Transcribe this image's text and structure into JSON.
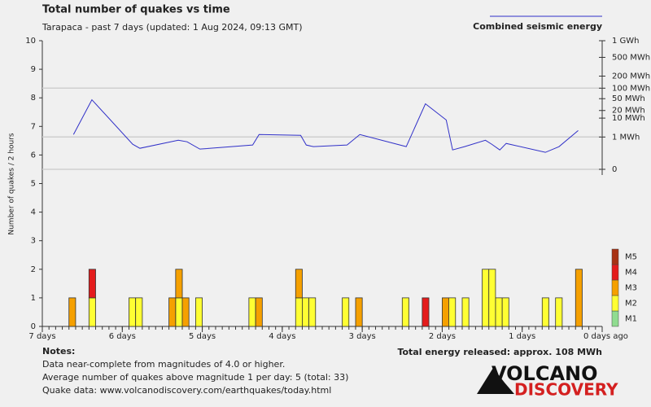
{
  "chart_data": {
    "type": "stacked-bar-line",
    "title": "Total number of quakes vs time",
    "subtitle": "Tarapaca - past 7 days (updated: 1 Aug 2024, 09:13 GMT)",
    "ylabel": "Number of quakes / 2 hours",
    "xlim": [
      7,
      0
    ],
    "xticks": [
      {
        "value": 7,
        "label": "7 days"
      },
      {
        "value": 6,
        "label": "6 days"
      },
      {
        "value": 5,
        "label": "5 days"
      },
      {
        "value": 4,
        "label": "4 days"
      },
      {
        "value": 3,
        "label": "3 days"
      },
      {
        "value": 2,
        "label": "2 days"
      },
      {
        "value": 1,
        "label": "1 days"
      },
      {
        "value": 0,
        "label": "0 days ago"
      }
    ],
    "ylim": [
      0,
      10
    ],
    "yticks": [
      0,
      1,
      2,
      3,
      4,
      5,
      6,
      7,
      8,
      9,
      10
    ],
    "y2lim": [
      0,
      1000
    ],
    "y2scale": "fifth-root",
    "y2ticks": [
      {
        "value": 1000,
        "label": "1 GWh"
      },
      {
        "value": 500,
        "label": "500 MWh"
      },
      {
        "value": 200,
        "label": "200 MWh"
      },
      {
        "value": 100,
        "label": "100 MWh",
        "grid": true
      },
      {
        "value": 50,
        "label": "50 MWh"
      },
      {
        "value": 20,
        "label": "20 MWh"
      },
      {
        "value": 10,
        "label": "10 MWh"
      },
      {
        "value": 1,
        "label": "1 MWh",
        "grid": true
      },
      {
        "value": 0,
        "label": "0",
        "grid": true
      }
    ],
    "x": [
      6.667,
      6.417,
      5.917,
      5.833,
      5.417,
      5.333,
      5.25,
      5.083,
      4.417,
      4.333,
      3.833,
      3.75,
      3.667,
      3.25,
      3.083,
      2.5,
      2.25,
      2.0,
      1.917,
      1.75,
      1.5,
      1.417,
      1.333,
      1.25,
      0.75,
      0.583,
      0.333
    ],
    "series": [
      {
        "name": "M1",
        "color": "#90dc90",
        "values": [
          0,
          0,
          0,
          0,
          0,
          0,
          0,
          0,
          0,
          0,
          0,
          0,
          0,
          0,
          0,
          0,
          0,
          0,
          0,
          0,
          0,
          0,
          0,
          0,
          0,
          0,
          0
        ]
      },
      {
        "name": "M2",
        "color": "#ffff33",
        "values": [
          0,
          1,
          1,
          1,
          0,
          1,
          0,
          1,
          1,
          0,
          1,
          1,
          1,
          1,
          0,
          1,
          0,
          0,
          1,
          1,
          2,
          2,
          1,
          1,
          1,
          1,
          0
        ]
      },
      {
        "name": "M3",
        "color": "#f5a000",
        "values": [
          1,
          0,
          0,
          0,
          1,
          1,
          1,
          0,
          0,
          1,
          1,
          0,
          0,
          0,
          1,
          0,
          0,
          1,
          0,
          0,
          0,
          0,
          0,
          0,
          0,
          0,
          2
        ]
      },
      {
        "name": "M4",
        "color": "#e41c1c",
        "values": [
          0,
          1,
          0,
          0,
          0,
          0,
          0,
          0,
          0,
          0,
          0,
          0,
          0,
          0,
          0,
          0,
          1,
          0,
          0,
          0,
          0,
          0,
          0,
          0,
          0,
          0,
          0
        ]
      },
      {
        "name": "M5",
        "color": "#a83214",
        "values": [
          0,
          0,
          0,
          0,
          0,
          0,
          0,
          0,
          0,
          0,
          0,
          0,
          0,
          0,
          0,
          0,
          0,
          0,
          0,
          0,
          0,
          0,
          0,
          0,
          0,
          0,
          0
        ]
      },
      {
        "name": "Combined seismic energy",
        "color": "#3030c8",
        "axis": "y2",
        "x": [
          6.61,
          6.38,
          5.87,
          5.78,
          5.3,
          5.19,
          5.03,
          4.37,
          4.29,
          3.77,
          3.7,
          3.61,
          3.19,
          3.03,
          2.45,
          2.21,
          1.95,
          1.87,
          1.72,
          1.46,
          1.38,
          1.28,
          1.2,
          0.71,
          0.54,
          0.3
        ],
        "values": [
          1.45,
          46.2,
          0.28,
          0.117,
          0.59,
          0.45,
          0.096,
          0.24,
          1.45,
          1.29,
          0.24,
          0.17,
          0.24,
          1.45,
          0.17,
          34.3,
          8.3,
          0.078,
          0.17,
          0.59,
          0.28,
          0.078,
          0.33,
          0.04,
          0.17,
          2.5
        ]
      }
    ],
    "total_energy": "Total energy released: approx. 108 MWh"
  },
  "notes": {
    "heading": "Notes:",
    "lines": [
      "Data near-complete from magnitudes of 4.0 or higher.",
      "Average number of quakes above magnitude 1 per day: 5 (total: 33)",
      "Quake data: www.volcanodiscovery.com/earthquakes/today.html"
    ]
  },
  "logo": {
    "line1": "VOLCANO",
    "line2": "DISCOVERY"
  }
}
